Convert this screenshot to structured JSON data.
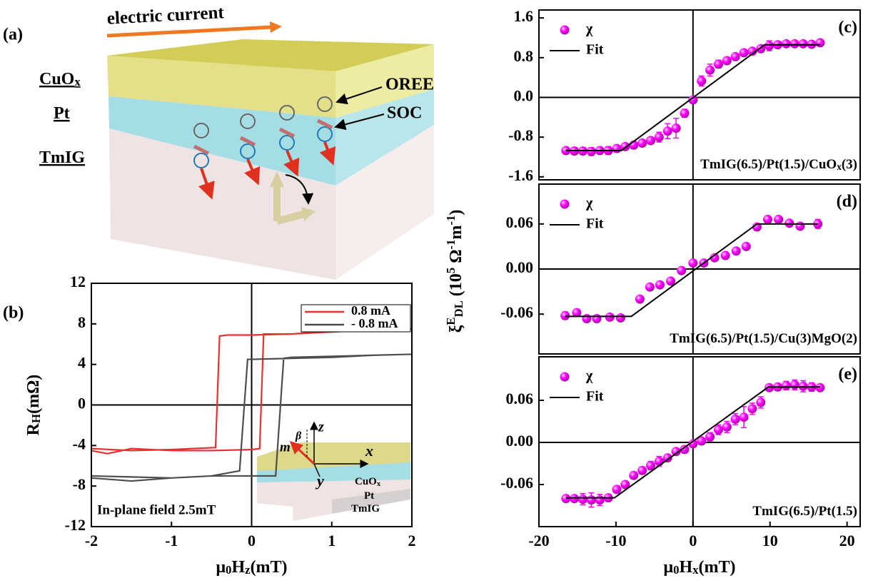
{
  "schematic": {
    "label": "(a)",
    "current": "electric current",
    "layers": [
      [
        {
          "t": "CuO"
        },
        {
          "sub": "x"
        }
      ],
      [
        {
          "t": "Pt"
        }
      ],
      [
        {
          "t": "TmIG"
        }
      ]
    ],
    "oree": "OREE",
    "soc": "SOC"
  },
  "shared_y_label": [
    {
      "t": "ξ"
    },
    {
      "sup": "E"
    },
    {
      "sub": "DL"
    },
    {
      "t": " (10"
    },
    {
      "sup": "5"
    },
    {
      "t": " Ω"
    },
    {
      "sup": "-1"
    },
    {
      "t": "m"
    },
    {
      "sup": "-1"
    },
    {
      "t": ")"
    }
  ],
  "chart_data": [
    {
      "type": "line",
      "panel_label": "(b)",
      "x_label": [
        {
          "t": "μ"
        },
        {
          "sub": "0"
        },
        {
          "t": "H"
        },
        {
          "sub": "z"
        },
        {
          "t": "(mT)"
        }
      ],
      "y_label": [
        {
          "t": "R"
        },
        {
          "sub": "H"
        },
        {
          "t": "(mΩ)"
        }
      ],
      "xlim": [
        -2,
        2
      ],
      "xticks": [
        -2,
        -1,
        0,
        1,
        2
      ],
      "ylim": [
        -12,
        12
      ],
      "yticks": [
        -12,
        -8,
        -4,
        0,
        4,
        8,
        12
      ],
      "legend": "upper right",
      "annotation": "In-plane field 2.5mT",
      "series": [
        {
          "name": "0.8 mA",
          "color": "#e8312f",
          "x": [
            -2,
            -1.8,
            -1.5,
            -1,
            -0.5,
            0,
            0.1,
            0.15,
            0.5,
            1,
            1.5,
            2,
            2,
            1.5,
            1,
            0.5,
            0,
            -0.3,
            -0.4,
            -0.45,
            -1,
            -1.5,
            -2
          ],
          "values": [
            -4.5,
            -4.8,
            -4.3,
            -4.5,
            -4.5,
            -4.4,
            -4.3,
            7.0,
            7.0,
            7.3,
            7.3,
            7.5,
            7.5,
            7.4,
            7.2,
            7.0,
            6.9,
            6.9,
            6.8,
            -4.2,
            -4.4,
            -4.5,
            -4.3
          ]
        },
        {
          "name": "- 0.8 mA",
          "color": "#4d4d4d",
          "x": [
            -2,
            -1.5,
            -1,
            -0.5,
            0,
            0.3,
            0.4,
            0.5,
            1,
            1.5,
            2,
            2,
            1.5,
            1,
            0.5,
            0,
            -0.05,
            -0.15,
            -0.5,
            -1,
            -1.5,
            -2
          ],
          "values": [
            -7.2,
            -7.5,
            -7.2,
            -7.0,
            -7.0,
            -7.0,
            4.6,
            4.7,
            4.8,
            4.9,
            5.0,
            5.0,
            4.9,
            4.7,
            4.6,
            4.5,
            4.5,
            -6.5,
            -7.0,
            -7.2,
            -7.1,
            -7.0
          ]
        }
      ],
      "inset": {
        "beta": "β",
        "z": "z",
        "m": "m",
        "x": "x",
        "y": "y",
        "layers": [
          [
            {
              "t": "CuO"
            },
            {
              "sub": "x"
            }
          ],
          [
            {
              "t": "Pt"
            }
          ],
          [
            {
              "t": "TmIG"
            }
          ]
        ]
      }
    },
    {
      "type": "scatter",
      "panel_label": "(c)",
      "sample": [
        {
          "t": "TmIG(6.5)/Pt(1.5)/CuO"
        },
        {
          "sub": "x"
        },
        {
          "t": "(3)"
        }
      ],
      "xlim": [
        -20,
        21.7
      ],
      "ylim": [
        -1.66,
        1.76
      ],
      "yticks": [
        -1.6,
        -0.8,
        {
          "value": 0,
          "label": "0.0"
        },
        0.8,
        1.6
      ],
      "series": [
        {
          "name": "χ",
          "color": "#ff00ff",
          "x": [
            -16.5,
            -15.4,
            -14.3,
            -13.2,
            -12.1,
            -11,
            -9.9,
            -8.8,
            -7.7,
            -6.6,
            -5.5,
            -4.4,
            -3.3,
            -2.2,
            -1.1,
            0,
            1.1,
            2.2,
            3.3,
            4.4,
            5.5,
            6.6,
            7.7,
            8.8,
            9.9,
            11,
            12.1,
            13.2,
            14.3,
            15.4,
            16.5
          ],
          "values": [
            -1.07,
            -1.08,
            -1.08,
            -1.09,
            -1.07,
            -1.07,
            -1.03,
            -0.99,
            -0.96,
            -0.92,
            -0.87,
            -0.8,
            -0.68,
            -0.62,
            -0.32,
            -0.05,
            0.33,
            0.55,
            0.67,
            0.74,
            0.82,
            0.9,
            0.93,
            0.98,
            1.04,
            1.06,
            1.08,
            1.08,
            1.08,
            1.07,
            1.1
          ],
          "errors": [
            0.07,
            0.07,
            0.07,
            0.08,
            0.07,
            0.08,
            0.07,
            0.06,
            0.07,
            0.06,
            0.07,
            0.1,
            0.15,
            0.2,
            0.08,
            0.05,
            0.1,
            0.12,
            0.08,
            0.07,
            0.06,
            0.06,
            0.06,
            0.07,
            0.1,
            0.07,
            0.06,
            0.06,
            0.06,
            0.06,
            0.06
          ]
        },
        {
          "name": "Fit",
          "color": "#000000",
          "x": [
            -16.5,
            -9.3,
            9.3,
            16.5
          ],
          "values": [
            -1.07,
            -1.07,
            1.06,
            1.06
          ]
        }
      ]
    },
    {
      "type": "scatter",
      "panel_label": "(d)",
      "sample": [
        {
          "t": "TmIG(6.5)/Pt(1.5)/Cu(3)MgO(2)"
        }
      ],
      "xlim": [
        -20,
        21.7
      ],
      "ylim": [
        -0.113,
        0.113
      ],
      "yticks": [
        -0.06,
        {
          "value": 0,
          "label": "0.00"
        },
        0.06
      ],
      "series": [
        {
          "name": "χ",
          "color": "#ff00ff",
          "x": [
            -16.6,
            -15.1,
            -13.8,
            -12.5,
            -10.8,
            -9.4,
            -6.9,
            -5.6,
            -4.3,
            -2.9,
            -1.5,
            0,
            1.4,
            2.8,
            4.2,
            5.6,
            6.9,
            8.3,
            9.7,
            11.1,
            12.5,
            13.9,
            16.2
          ],
          "values": [
            -0.062,
            -0.058,
            -0.066,
            -0.066,
            -0.064,
            -0.065,
            -0.04,
            -0.024,
            -0.021,
            -0.016,
            -0.002,
            0.008,
            0.008,
            0.015,
            0.018,
            0.024,
            0.03,
            0.056,
            0.066,
            0.066,
            0.061,
            0.057,
            0.06
          ],
          "errors": [
            0.005,
            0.004,
            0.004,
            0.004,
            0.004,
            0.004,
            0.003,
            0.003,
            0.003,
            0.003,
            0.003,
            0.003,
            0.003,
            0.003,
            0.003,
            0.003,
            0.003,
            0.003,
            0.004,
            0.004,
            0.003,
            0.003,
            0.006
          ]
        },
        {
          "name": "Fit",
          "color": "#000000",
          "x": [
            -16.6,
            -8,
            8.3,
            16.2
          ],
          "values": [
            -0.063,
            -0.063,
            0.06,
            0.06
          ]
        }
      ]
    },
    {
      "type": "scatter",
      "panel_label": "(e)",
      "sample": [
        {
          "t": "TmIG(6.5)/Pt(1.5)"
        }
      ],
      "x_label": [
        {
          "t": "μ"
        },
        {
          "sub": "0"
        },
        {
          "t": "H"
        },
        {
          "sub": "x"
        },
        {
          "t": "(mT)"
        }
      ],
      "xlim": [
        -20,
        21.7
      ],
      "xticks": [
        -20,
        -10,
        0,
        10,
        20
      ],
      "ylim": [
        -0.12,
        0.122
      ],
      "yticks": [
        -0.06,
        {
          "value": 0,
          "label": "0.00"
        },
        0.06
      ],
      "series": [
        {
          "name": "χ",
          "color": "#ff00ff",
          "x": [
            -16.5,
            -15.4,
            -14.3,
            -13.2,
            -12.1,
            -11,
            -9.9,
            -8.8,
            -7.7,
            -6.6,
            -5.5,
            -4.4,
            -3.3,
            -2.2,
            -1.1,
            0,
            1.1,
            2.2,
            3.3,
            4.4,
            5.5,
            6.6,
            7.7,
            8.8,
            9.9,
            11,
            12.1,
            13.2,
            14.3,
            15.4,
            16.5
          ],
          "values": [
            -0.08,
            -0.08,
            -0.081,
            -0.082,
            -0.082,
            -0.079,
            -0.067,
            -0.06,
            -0.047,
            -0.04,
            -0.033,
            -0.027,
            -0.022,
            -0.013,
            -0.01,
            -0.002,
            0.002,
            0.008,
            0.018,
            0.022,
            0.033,
            0.036,
            0.048,
            0.057,
            0.078,
            0.079,
            0.081,
            0.082,
            0.08,
            0.079,
            0.078
          ],
          "errors": [
            0.004,
            0.004,
            0.008,
            0.01,
            0.008,
            0.005,
            0.005,
            0.004,
            0.005,
            0.005,
            0.006,
            0.007,
            0.004,
            0.004,
            0.005,
            0.004,
            0.004,
            0.006,
            0.007,
            0.008,
            0.008,
            0.015,
            0.008,
            0.008,
            0.004,
            0.005,
            0.006,
            0.007,
            0.008,
            0.006,
            0.004
          ]
        },
        {
          "name": "Fit",
          "color": "#000000",
          "x": [
            -16.5,
            -10.2,
            9.8,
            16.5
          ],
          "values": [
            -0.079,
            -0.079,
            0.079,
            0.079
          ]
        }
      ]
    }
  ]
}
